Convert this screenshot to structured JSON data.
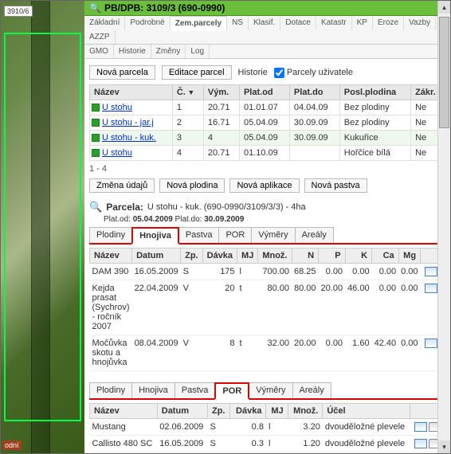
{
  "map": {
    "plot_label": "3910/6",
    "bottom_label": "odní"
  },
  "header": {
    "title": "PB/DPB: 3109/3 (690-0990)"
  },
  "main_tabs_row1": [
    "Základní",
    "Podrobné",
    "Zem.parcely",
    "NS",
    "Klasif.",
    "Dotace",
    "Katastr",
    "KP",
    "Eroze",
    "Vazby",
    "AZZP"
  ],
  "main_tabs_row2": [
    "GMO",
    "Historie",
    "Změny",
    "Log"
  ],
  "main_tabs_active": "Zem.parcely",
  "toolbar": {
    "nova_parcela": "Nová parcela",
    "editace_parcel": "Editace parcel",
    "historie": "Historie",
    "parcely_uzivatele": "Parcely uživatele"
  },
  "parc_table": {
    "cols": [
      "Název",
      "Č.",
      "Vým.",
      "Plat.od",
      "Plat.do",
      "Posl.plodina",
      "Zákr."
    ],
    "sorted_col": 1,
    "rows": [
      {
        "nazev": "U stohu",
        "c": "1",
        "vym": "20.71",
        "od": "01.01.07",
        "do": "04.04.09",
        "pl": "Bez plodiny",
        "zak": "Ne",
        "sel": false
      },
      {
        "nazev": "U stohu - jar.j",
        "c": "2",
        "vym": "16.71",
        "od": "05.04.09",
        "do": "30.09.09",
        "pl": "Bez plodiny",
        "zak": "Ne",
        "sel": false
      },
      {
        "nazev": "U stohu - kuk.",
        "c": "3",
        "vym": "4",
        "od": "05.04.09",
        "do": "30.09.09",
        "pl": "Kukuřice",
        "zak": "Ne",
        "sel": true
      },
      {
        "nazev": "U stohu",
        "c": "4",
        "vym": "20.71",
        "od": "01.10.09",
        "do": "",
        "pl": "Hořčice bílá",
        "zak": "Ne",
        "sel": false
      }
    ],
    "pager": "1 - 4"
  },
  "action_buttons": [
    "Změna údajů",
    "Nová plodina",
    "Nová aplikace",
    "Nová pastva"
  ],
  "parcel_detail": {
    "label": "Parcela:",
    "title": "U stohu - kuk. (690-0990/3109/3/3) - 4ha",
    "plat_od_label": "Plat.od:",
    "plat_od": "05.04.2009",
    "plat_do_label": "Plat.do:",
    "plat_do": "30.09.2009"
  },
  "subtabs1": [
    "Plodiny",
    "Hnojiva",
    "Pastva",
    "POR",
    "Výměry",
    "Areály"
  ],
  "subtabs1_active": "Hnojiva",
  "hnojiva": {
    "cols": [
      "Název",
      "Datum",
      "Zp.",
      "Dávka",
      "MJ",
      "Množ.",
      "N",
      "P",
      "K",
      "Ca",
      "Mg",
      ""
    ],
    "rows": [
      {
        "n": "DAM 390",
        "d": "16.05.2009",
        "zp": "S",
        "dav": "175",
        "mj": "l",
        "mn": "700.00",
        "N": "68.25",
        "P": "0.00",
        "K": "0.00",
        "Ca": "0.00",
        "Mg": "0.00"
      },
      {
        "n": "Kejda prasat (Sychrov) - ročník 2007",
        "d": "22.04.2009",
        "zp": "V",
        "dav": "20",
        "mj": "t",
        "mn": "80.00",
        "N": "80.00",
        "P": "20.00",
        "K": "46.00",
        "Ca": "0.00",
        "Mg": "0.00"
      },
      {
        "n": "Močůvka skotu a hnojůvka",
        "d": "08.04.2009",
        "zp": "V",
        "dav": "8",
        "mj": "t",
        "mn": "32.00",
        "N": "20.00",
        "P": "0.00",
        "K": "1.60",
        "Ca": "42.40",
        "Mg": "0.00"
      }
    ]
  },
  "subtabs2": [
    "Plodiny",
    "Hnojiva",
    "Pastva",
    "POR",
    "Výměry",
    "Areály"
  ],
  "subtabs2_active": "POR",
  "por": {
    "cols": [
      "Název",
      "Datum",
      "Zp.",
      "Dávka",
      "MJ",
      "Množ.",
      "Účel",
      ""
    ],
    "rows": [
      {
        "n": "Mustang",
        "d": "02.06.2009",
        "zp": "S",
        "dav": "0.8",
        "mj": "l",
        "mn": "3.20",
        "u": "dvouděložné plevele"
      },
      {
        "n": "Callisto 480 SC",
        "d": "16.05.2009",
        "zp": "S",
        "dav": "0.3",
        "mj": "l",
        "mn": "1.20",
        "u": "dvouděložné plevele"
      }
    ]
  }
}
